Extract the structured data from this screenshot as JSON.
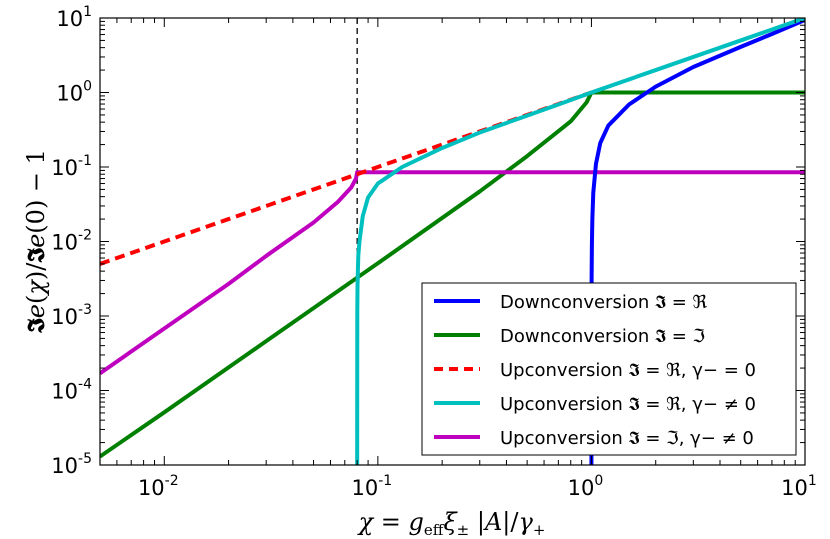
{
  "chart_data": {
    "type": "line",
    "xscale": "log",
    "yscale": "log",
    "xlim": [
      0.005,
      10
    ],
    "ylim": [
      1e-05,
      10
    ],
    "xlabel": "χ = g_eff ξ± |A| / γ+",
    "ylabel": "𝕴e(χ)/𝕴e(0) − 1",
    "grid": false,
    "legend_position": "lower-right",
    "x_ticks": [
      {
        "value": 0.01,
        "base": "10",
        "exp": "-2"
      },
      {
        "value": 0.1,
        "base": "10",
        "exp": "-1"
      },
      {
        "value": 1,
        "base": "10",
        "exp": "0"
      },
      {
        "value": 10,
        "base": "10",
        "exp": "1"
      }
    ],
    "y_ticks": [
      {
        "value": 1e-05,
        "base": "10",
        "exp": "-5"
      },
      {
        "value": 0.0001,
        "base": "10",
        "exp": "-4"
      },
      {
        "value": 0.001,
        "base": "10",
        "exp": "-3"
      },
      {
        "value": 0.01,
        "base": "10",
        "exp": "-2"
      },
      {
        "value": 0.1,
        "base": "10",
        "exp": "-1"
      },
      {
        "value": 1,
        "base": "10",
        "exp": "0"
      },
      {
        "value": 10,
        "base": "10",
        "exp": "1"
      }
    ],
    "threshold_line": {
      "x": 0.08,
      "style": "dashed",
      "color": "#000000"
    },
    "series": [
      {
        "name": "Downconversion 𝕴 = ℜ",
        "color": "#0000ff",
        "dash": false,
        "x": [
          1.0,
          1.0005,
          1.001,
          1.002,
          1.005,
          1.01,
          1.02,
          1.05,
          1.1,
          1.2,
          1.5,
          2,
          3,
          5,
          7,
          10
        ],
        "y": [
          1e-05,
          0.0012,
          0.0016,
          0.0033,
          0.009,
          0.02,
          0.045,
          0.11,
          0.21,
          0.36,
          0.69,
          1.2,
          2.2,
          4.1,
          6.1,
          9.4
        ]
      },
      {
        "name": "Downconversion 𝕴 = ℑ",
        "color": "#008000",
        "dash": false,
        "x": [
          0.005,
          0.01,
          0.03,
          0.1,
          0.3,
          0.5,
          0.8,
          0.95,
          1.0,
          2,
          5,
          10
        ],
        "y": [
          1.3e-05,
          5.1e-05,
          0.00046,
          0.0051,
          0.047,
          0.14,
          0.41,
          0.74,
          1.0,
          1.0,
          1.0,
          1.0
        ]
      },
      {
        "name": "Upconversion 𝕴 = ℜ, γ− = 0",
        "color": "#ff0000",
        "dash": true,
        "x": [
          0.005,
          0.01,
          0.02,
          0.05,
          0.08,
          0.1,
          0.2,
          0.5,
          1.0
        ],
        "y": [
          0.005,
          0.01,
          0.02,
          0.05,
          0.08,
          0.1,
          0.2,
          0.5,
          1.0
        ]
      },
      {
        "name": "Upconversion 𝕴 = ℜ, γ− ≠ 0",
        "color": "#00bfbf",
        "dash": false,
        "x": [
          0.08,
          0.0801,
          0.0803,
          0.0806,
          0.081,
          0.082,
          0.085,
          0.09,
          0.1,
          0.13,
          0.2,
          0.3,
          0.5,
          0.7,
          1.0,
          2,
          5,
          10
        ],
        "y": [
          1e-05,
          0.0011,
          0.0025,
          0.004,
          0.0065,
          0.01,
          0.022,
          0.039,
          0.06,
          0.1,
          0.18,
          0.29,
          0.49,
          0.69,
          1.0,
          2.0,
          5.0,
          10.0
        ]
      },
      {
        "name": "Upconversion 𝕴 = ℑ, γ− ≠ 0",
        "color": "#bf00bf",
        "dash": false,
        "x": [
          0.005,
          0.01,
          0.02,
          0.03,
          0.05,
          0.065,
          0.075,
          0.079,
          0.08,
          0.2,
          1,
          10
        ],
        "y": [
          0.00017,
          0.00068,
          0.0027,
          0.0064,
          0.018,
          0.034,
          0.053,
          0.07,
          0.085,
          0.085,
          0.085,
          0.085
        ]
      }
    ]
  }
}
